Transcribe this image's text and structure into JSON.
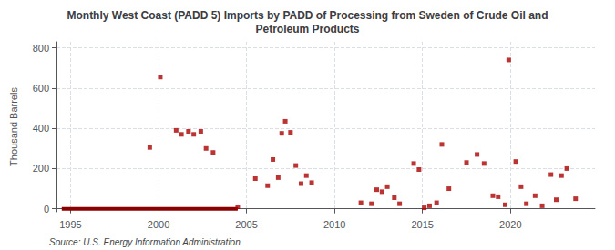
{
  "chart_data": {
    "type": "scatter",
    "title": "Monthly West Coast (PADD 5) Imports by PADD of Processing from Sweden of Crude Oil and\nPetroleum Products",
    "ylabel": "Thousand Barrels",
    "source": "Source: U.S. Energy Information Administration",
    "xlim": [
      1994.2,
      2024.8
    ],
    "ylim": [
      -15,
      830
    ],
    "xticks": [
      1995,
      2000,
      2005,
      2010,
      2015,
      2020
    ],
    "yticks": [
      0,
      200,
      400,
      600,
      800
    ],
    "grid": true,
    "series": [
      {
        "type": "line",
        "color": "#8b0000",
        "line_style": "solid",
        "x": [
          1994.5,
          2004.5
        ],
        "values": [
          0,
          0
        ]
      },
      {
        "type": "scatter",
        "color": "#aa0000",
        "marker": "square",
        "x": [
          1999.5,
          2000.1,
          2001.0,
          2001.3,
          2001.7,
          2002.0,
          2002.4,
          2002.7,
          2003.1,
          2004.5,
          2005.5,
          2006.2,
          2006.5,
          2006.8,
          2007.0,
          2007.2,
          2007.5,
          2007.8,
          2008.1,
          2008.4,
          2008.7,
          2011.5,
          2012.1,
          2012.4,
          2012.7,
          2013.0,
          2013.4,
          2013.7,
          2014.5,
          2014.8,
          2015.1,
          2015.4,
          2015.8,
          2016.1,
          2016.5,
          2017.5,
          2018.1,
          2018.5,
          2019.0,
          2019.3,
          2019.7,
          2019.9,
          2020.3,
          2020.6,
          2020.9,
          2021.4,
          2021.8,
          2022.3,
          2022.6,
          2022.9,
          2023.2,
          2023.7
        ],
        "values": [
          305,
          655,
          390,
          370,
          385,
          370,
          385,
          300,
          280,
          10,
          150,
          115,
          245,
          155,
          375,
          435,
          380,
          215,
          125,
          165,
          130,
          30,
          25,
          95,
          85,
          110,
          55,
          25,
          225,
          195,
          5,
          15,
          30,
          320,
          100,
          230,
          270,
          225,
          65,
          60,
          20,
          740,
          235,
          110,
          25,
          65,
          15,
          170,
          45,
          165,
          200,
          50
        ]
      }
    ]
  }
}
